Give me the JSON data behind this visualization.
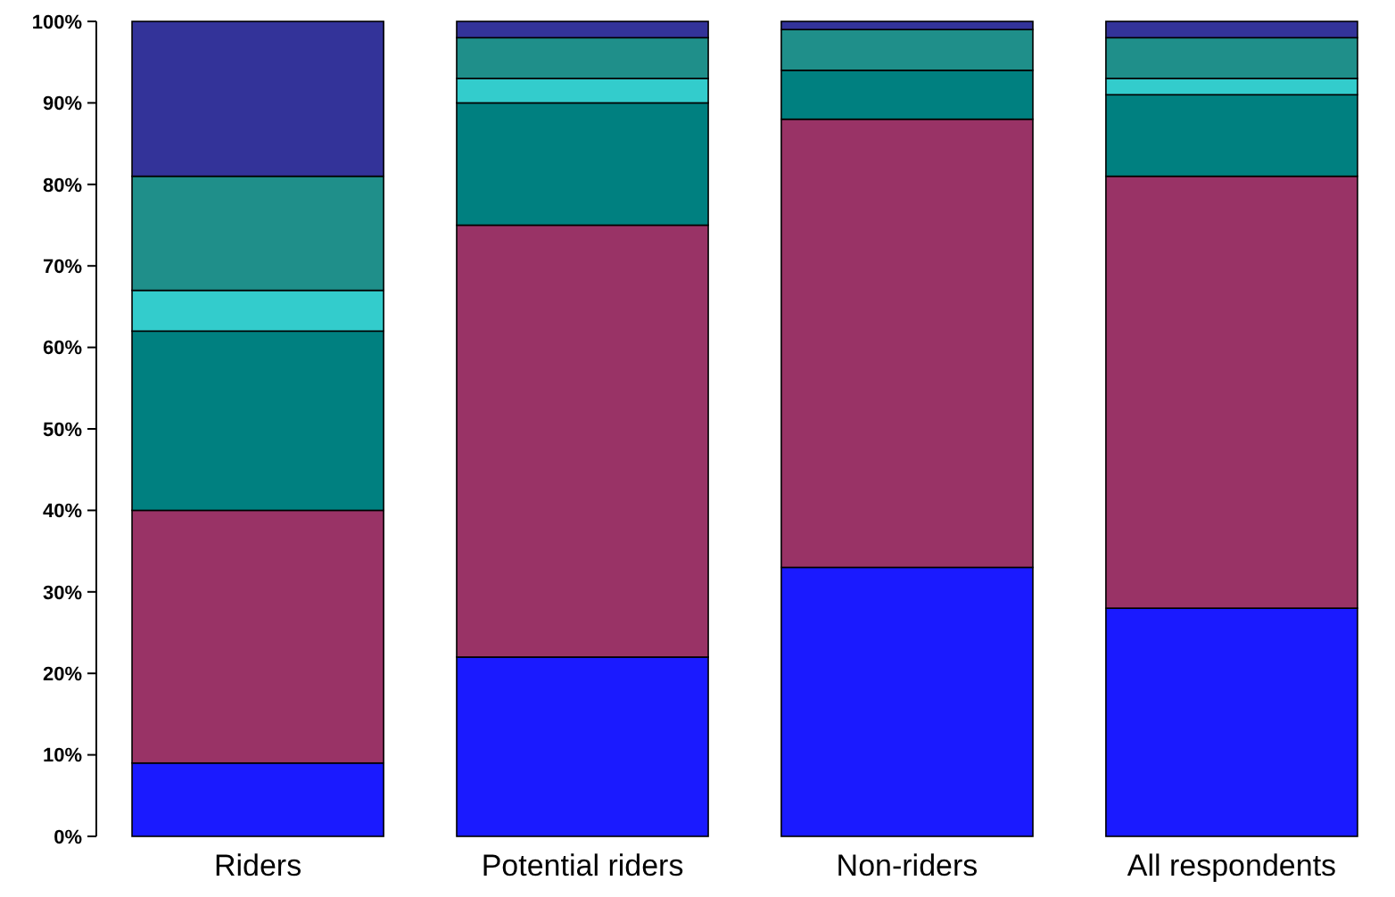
{
  "chart_data": {
    "type": "bar",
    "stacked": true,
    "categories": [
      "Riders",
      "Potential riders",
      "Non-riders",
      "All respondents"
    ],
    "series": [
      {
        "color": "#1a1aff",
        "values": [
          9,
          22,
          33,
          28
        ]
      },
      {
        "color": "#993366",
        "values": [
          31,
          53,
          55,
          53
        ]
      },
      {
        "color": "#008080",
        "values": [
          22,
          15,
          6,
          10
        ]
      },
      {
        "color": "#33cccc",
        "values": [
          5,
          3,
          0,
          2
        ]
      },
      {
        "color": "#1f8f8a",
        "values": [
          14,
          5,
          5,
          5
        ]
      },
      {
        "color": "#333399",
        "values": [
          19,
          2,
          1,
          2
        ]
      }
    ],
    "ylim": [
      0,
      100
    ],
    "yticks": [
      {
        "value": 0,
        "label": "0%"
      },
      {
        "value": 10,
        "label": "10%"
      },
      {
        "value": 20,
        "label": "20%"
      },
      {
        "value": 30,
        "label": "30%"
      },
      {
        "value": 40,
        "label": "40%"
      },
      {
        "value": 50,
        "label": "50%"
      },
      {
        "value": 60,
        "label": "60%"
      },
      {
        "value": 70,
        "label": "70%"
      },
      {
        "value": 80,
        "label": "80%"
      },
      {
        "value": 90,
        "label": "90%"
      },
      {
        "value": 100,
        "label": "100%"
      }
    ]
  }
}
